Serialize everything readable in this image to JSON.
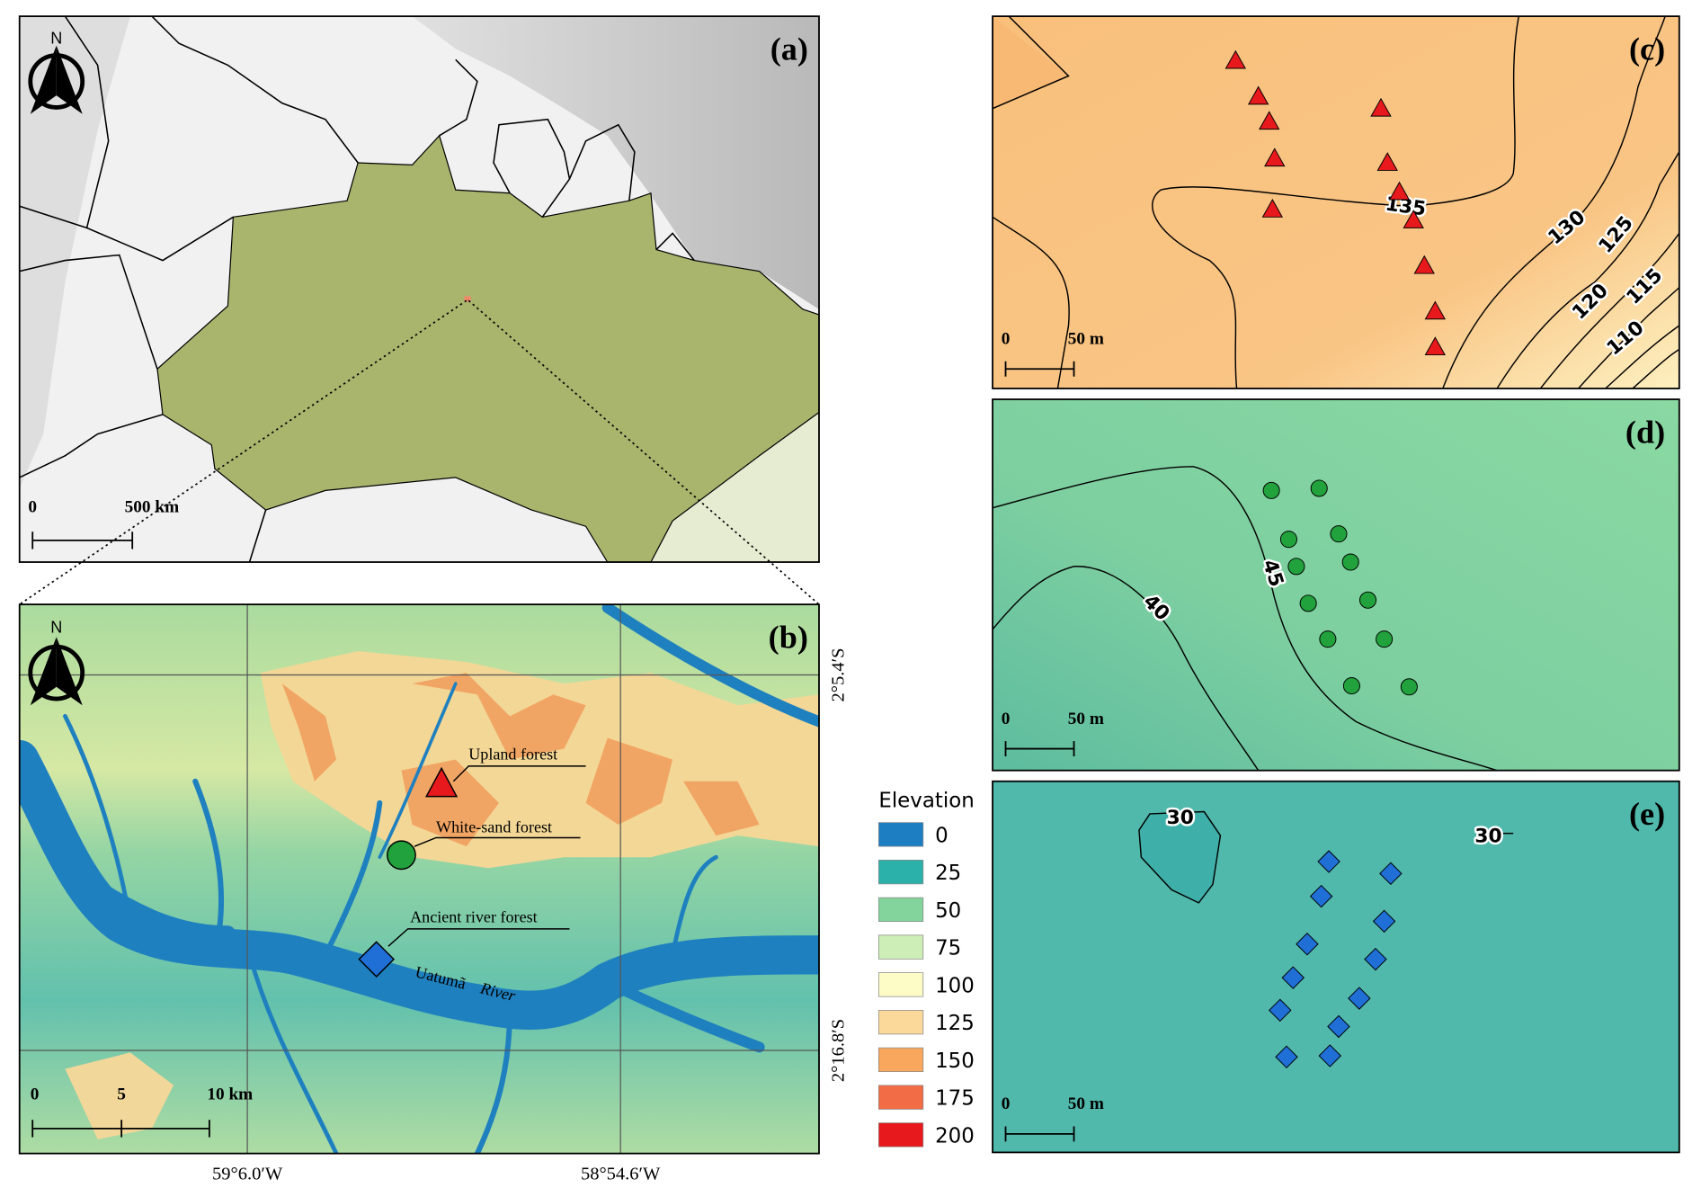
{
  "panels": {
    "a": {
      "label": "(a)",
      "north": "N",
      "scale_labels": [
        "0",
        "500 km"
      ]
    },
    "b": {
      "label": "(b)",
      "north": "N",
      "scale_labels": [
        "0",
        "5",
        "10 km"
      ],
      "latitudes": [
        "2°5.4′S",
        "2°16.8′S"
      ],
      "longitudes": [
        "59°6.0′W",
        "58°54.6′W"
      ],
      "sites": [
        "Upland forest",
        "White-sand forest",
        "Ancient river forest"
      ],
      "river": [
        "Uatumã",
        "River"
      ]
    },
    "c": {
      "label": "(c)",
      "scale_labels": [
        "0",
        "50 m"
      ],
      "contours": [
        135,
        130,
        125,
        120,
        115,
        110
      ]
    },
    "d": {
      "label": "(d)",
      "scale_labels": [
        "0",
        "50 m"
      ],
      "contours": [
        45,
        40
      ]
    },
    "e": {
      "label": "(e)",
      "scale_labels": [
        "0",
        "50 m"
      ],
      "contours": [
        30,
        30
      ]
    }
  },
  "legend": {
    "title": "Elevation",
    "classes": [
      {
        "label": 0,
        "color": "#1d7fc1"
      },
      {
        "label": 25,
        "color": "#2bb0aa"
      },
      {
        "label": 50,
        "color": "#82d49c"
      },
      {
        "label": 75,
        "color": "#cdeeb6"
      },
      {
        "label": 100,
        "color": "#fdfbc6"
      },
      {
        "label": 125,
        "color": "#fbd99b"
      },
      {
        "label": 150,
        "color": "#f8a75d"
      },
      {
        "label": 175,
        "color": "#f26c45"
      },
      {
        "label": 200,
        "color": "#e8191c"
      }
    ]
  }
}
